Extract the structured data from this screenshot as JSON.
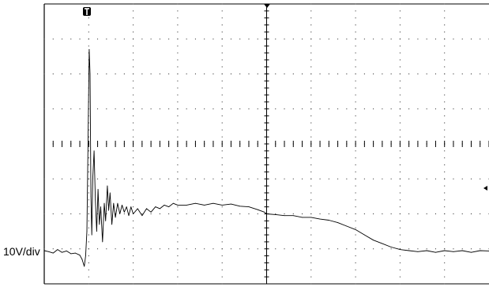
{
  "chart_data": {
    "type": "line",
    "title": "",
    "xlabel": "",
    "ylabel": "10V/div",
    "grid": true,
    "divisions": {
      "x": 10,
      "y": 8
    },
    "xlim": [
      0,
      10
    ],
    "ylim": [
      -2,
      6
    ],
    "markers": {
      "trigger_time_icon": "T-marker",
      "trigger_level_icon": "arrow-left"
    },
    "series": [
      {
        "points": [
          [
            0.0,
            -1.05
          ],
          [
            0.1,
            -1.08
          ],
          [
            0.2,
            -1.12
          ],
          [
            0.3,
            -1.02
          ],
          [
            0.4,
            -1.1
          ],
          [
            0.5,
            -1.06
          ],
          [
            0.6,
            -1.14
          ],
          [
            0.7,
            -1.12
          ],
          [
            0.8,
            -1.18
          ],
          [
            0.85,
            -1.3
          ],
          [
            0.9,
            -1.5
          ],
          [
            0.93,
            -1.2
          ],
          [
            0.96,
            -0.5
          ],
          [
            0.99,
            2.5
          ],
          [
            1.01,
            4.7
          ],
          [
            1.03,
            4.0
          ],
          [
            1.05,
            0.5
          ],
          [
            1.07,
            -0.6
          ],
          [
            1.09,
            1.0
          ],
          [
            1.12,
            1.8
          ],
          [
            1.15,
            0.4
          ],
          [
            1.18,
            -0.5
          ],
          [
            1.21,
            0.7
          ],
          [
            1.24,
            -0.3
          ],
          [
            1.27,
            0.2
          ],
          [
            1.31,
            -0.8
          ],
          [
            1.35,
            0.3
          ],
          [
            1.38,
            -0.2
          ],
          [
            1.42,
            0.8
          ],
          [
            1.45,
            0.1
          ],
          [
            1.48,
            0.6
          ],
          [
            1.52,
            -0.3
          ],
          [
            1.56,
            0.3
          ],
          [
            1.6,
            -0.1
          ],
          [
            1.65,
            0.3
          ],
          [
            1.7,
            0.0
          ],
          [
            1.75,
            0.25
          ],
          [
            1.8,
            0.05
          ],
          [
            1.85,
            0.2
          ],
          [
            1.9,
            -0.05
          ],
          [
            1.95,
            0.2
          ],
          [
            2.0,
            0.0
          ],
          [
            2.1,
            0.15
          ],
          [
            2.2,
            -0.05
          ],
          [
            2.3,
            0.15
          ],
          [
            2.4,
            0.05
          ],
          [
            2.5,
            0.2
          ],
          [
            2.6,
            0.15
          ],
          [
            2.7,
            0.25
          ],
          [
            2.8,
            0.2
          ],
          [
            2.9,
            0.3
          ],
          [
            3.0,
            0.25
          ],
          [
            3.2,
            0.25
          ],
          [
            3.4,
            0.3
          ],
          [
            3.6,
            0.25
          ],
          [
            3.8,
            0.3
          ],
          [
            4.0,
            0.25
          ],
          [
            4.2,
            0.28
          ],
          [
            4.4,
            0.22
          ],
          [
            4.6,
            0.2
          ],
          [
            4.8,
            0.12
          ],
          [
            4.95,
            0.05
          ],
          [
            5.0,
            0.0
          ],
          [
            5.2,
            -0.02
          ],
          [
            5.4,
            -0.05
          ],
          [
            5.6,
            -0.05
          ],
          [
            5.8,
            -0.1
          ],
          [
            6.0,
            -0.1
          ],
          [
            6.2,
            -0.15
          ],
          [
            6.4,
            -0.18
          ],
          [
            6.6,
            -0.25
          ],
          [
            6.8,
            -0.35
          ],
          [
            7.0,
            -0.45
          ],
          [
            7.2,
            -0.6
          ],
          [
            7.4,
            -0.75
          ],
          [
            7.6,
            -0.85
          ],
          [
            7.8,
            -0.95
          ],
          [
            8.0,
            -1.02
          ],
          [
            8.2,
            -1.05
          ],
          [
            8.4,
            -1.08
          ],
          [
            8.6,
            -1.05
          ],
          [
            8.8,
            -1.1
          ],
          [
            9.0,
            -1.05
          ],
          [
            9.2,
            -1.08
          ],
          [
            9.4,
            -1.05
          ],
          [
            9.6,
            -1.1
          ],
          [
            9.8,
            -1.05
          ],
          [
            10.0,
            -1.06
          ]
        ]
      }
    ]
  }
}
